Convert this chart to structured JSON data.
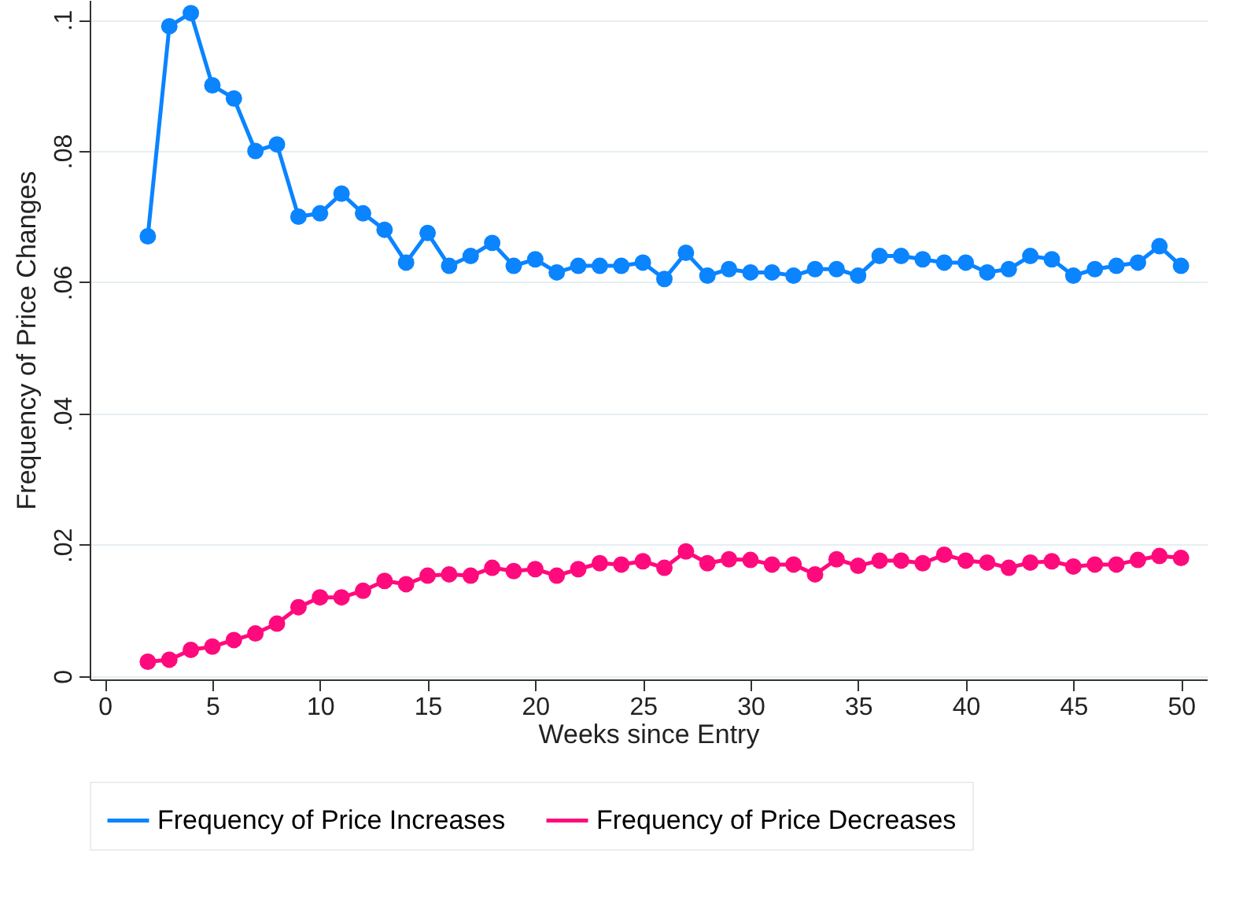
{
  "chart_data": {
    "type": "line",
    "xlabel": "Weeks since Entry",
    "ylabel": "Frequency of Price Changes",
    "x": [
      2,
      3,
      4,
      5,
      6,
      7,
      8,
      9,
      10,
      11,
      12,
      13,
      14,
      15,
      16,
      17,
      18,
      19,
      20,
      21,
      22,
      23,
      24,
      25,
      26,
      27,
      28,
      29,
      30,
      31,
      32,
      33,
      34,
      35,
      36,
      37,
      38,
      39,
      40,
      41,
      42,
      43,
      44,
      45,
      46,
      47,
      48,
      49,
      50
    ],
    "series": [
      {
        "name": "Frequency of Price Increases",
        "color": "#0a84ff",
        "values": [
          0.067,
          0.099,
          0.101,
          0.09,
          0.088,
          0.08,
          0.081,
          0.07,
          0.0705,
          0.0735,
          0.0705,
          0.068,
          0.063,
          0.0675,
          0.0625,
          0.064,
          0.066,
          0.0625,
          0.0635,
          0.0615,
          0.0625,
          0.0625,
          0.0625,
          0.063,
          0.0605,
          0.0645,
          0.061,
          0.062,
          0.0615,
          0.0615,
          0.061,
          0.062,
          0.062,
          0.061,
          0.064,
          0.064,
          0.0635,
          0.063,
          0.063,
          0.0615,
          0.062,
          0.064,
          0.0635,
          0.061,
          0.062,
          0.0625,
          0.063,
          0.0655,
          0.0625
        ]
      },
      {
        "name": "Frequency of Price Decreases",
        "color": "#ff0a7d",
        "values": [
          0.0022,
          0.0025,
          0.004,
          0.0045,
          0.0055,
          0.0065,
          0.008,
          0.0105,
          0.012,
          0.012,
          0.013,
          0.0145,
          0.014,
          0.0153,
          0.0155,
          0.0153,
          0.0165,
          0.016,
          0.0163,
          0.0153,
          0.0163,
          0.0172,
          0.017,
          0.0175,
          0.0165,
          0.019,
          0.0172,
          0.0178,
          0.0177,
          0.017,
          0.017,
          0.0155,
          0.0178,
          0.0168,
          0.0176,
          0.0176,
          0.0172,
          0.0185,
          0.0176,
          0.0173,
          0.0165,
          0.0173,
          0.0175,
          0.0167,
          0.017,
          0.017,
          0.0177,
          0.0183,
          0.018
        ]
      }
    ],
    "xlim": [
      -0.7,
      51.2
    ],
    "xticks": [
      0,
      5,
      10,
      15,
      20,
      25,
      30,
      35,
      40,
      45,
      50
    ],
    "ylim": [
      -0.0005,
      0.103
    ],
    "yticks": [
      {
        "value": 0,
        "label": "0"
      },
      {
        "value": 0.02,
        "label": ".02"
      },
      {
        "value": 0.04,
        "label": ".04"
      },
      {
        "value": 0.06,
        "label": ".06"
      },
      {
        "value": 0.08,
        "label": ".08"
      },
      {
        "value": 0.1,
        "label": ".1"
      }
    ],
    "grid": "y",
    "legend": "bottom",
    "marker": "circle",
    "line_style": "solid"
  }
}
